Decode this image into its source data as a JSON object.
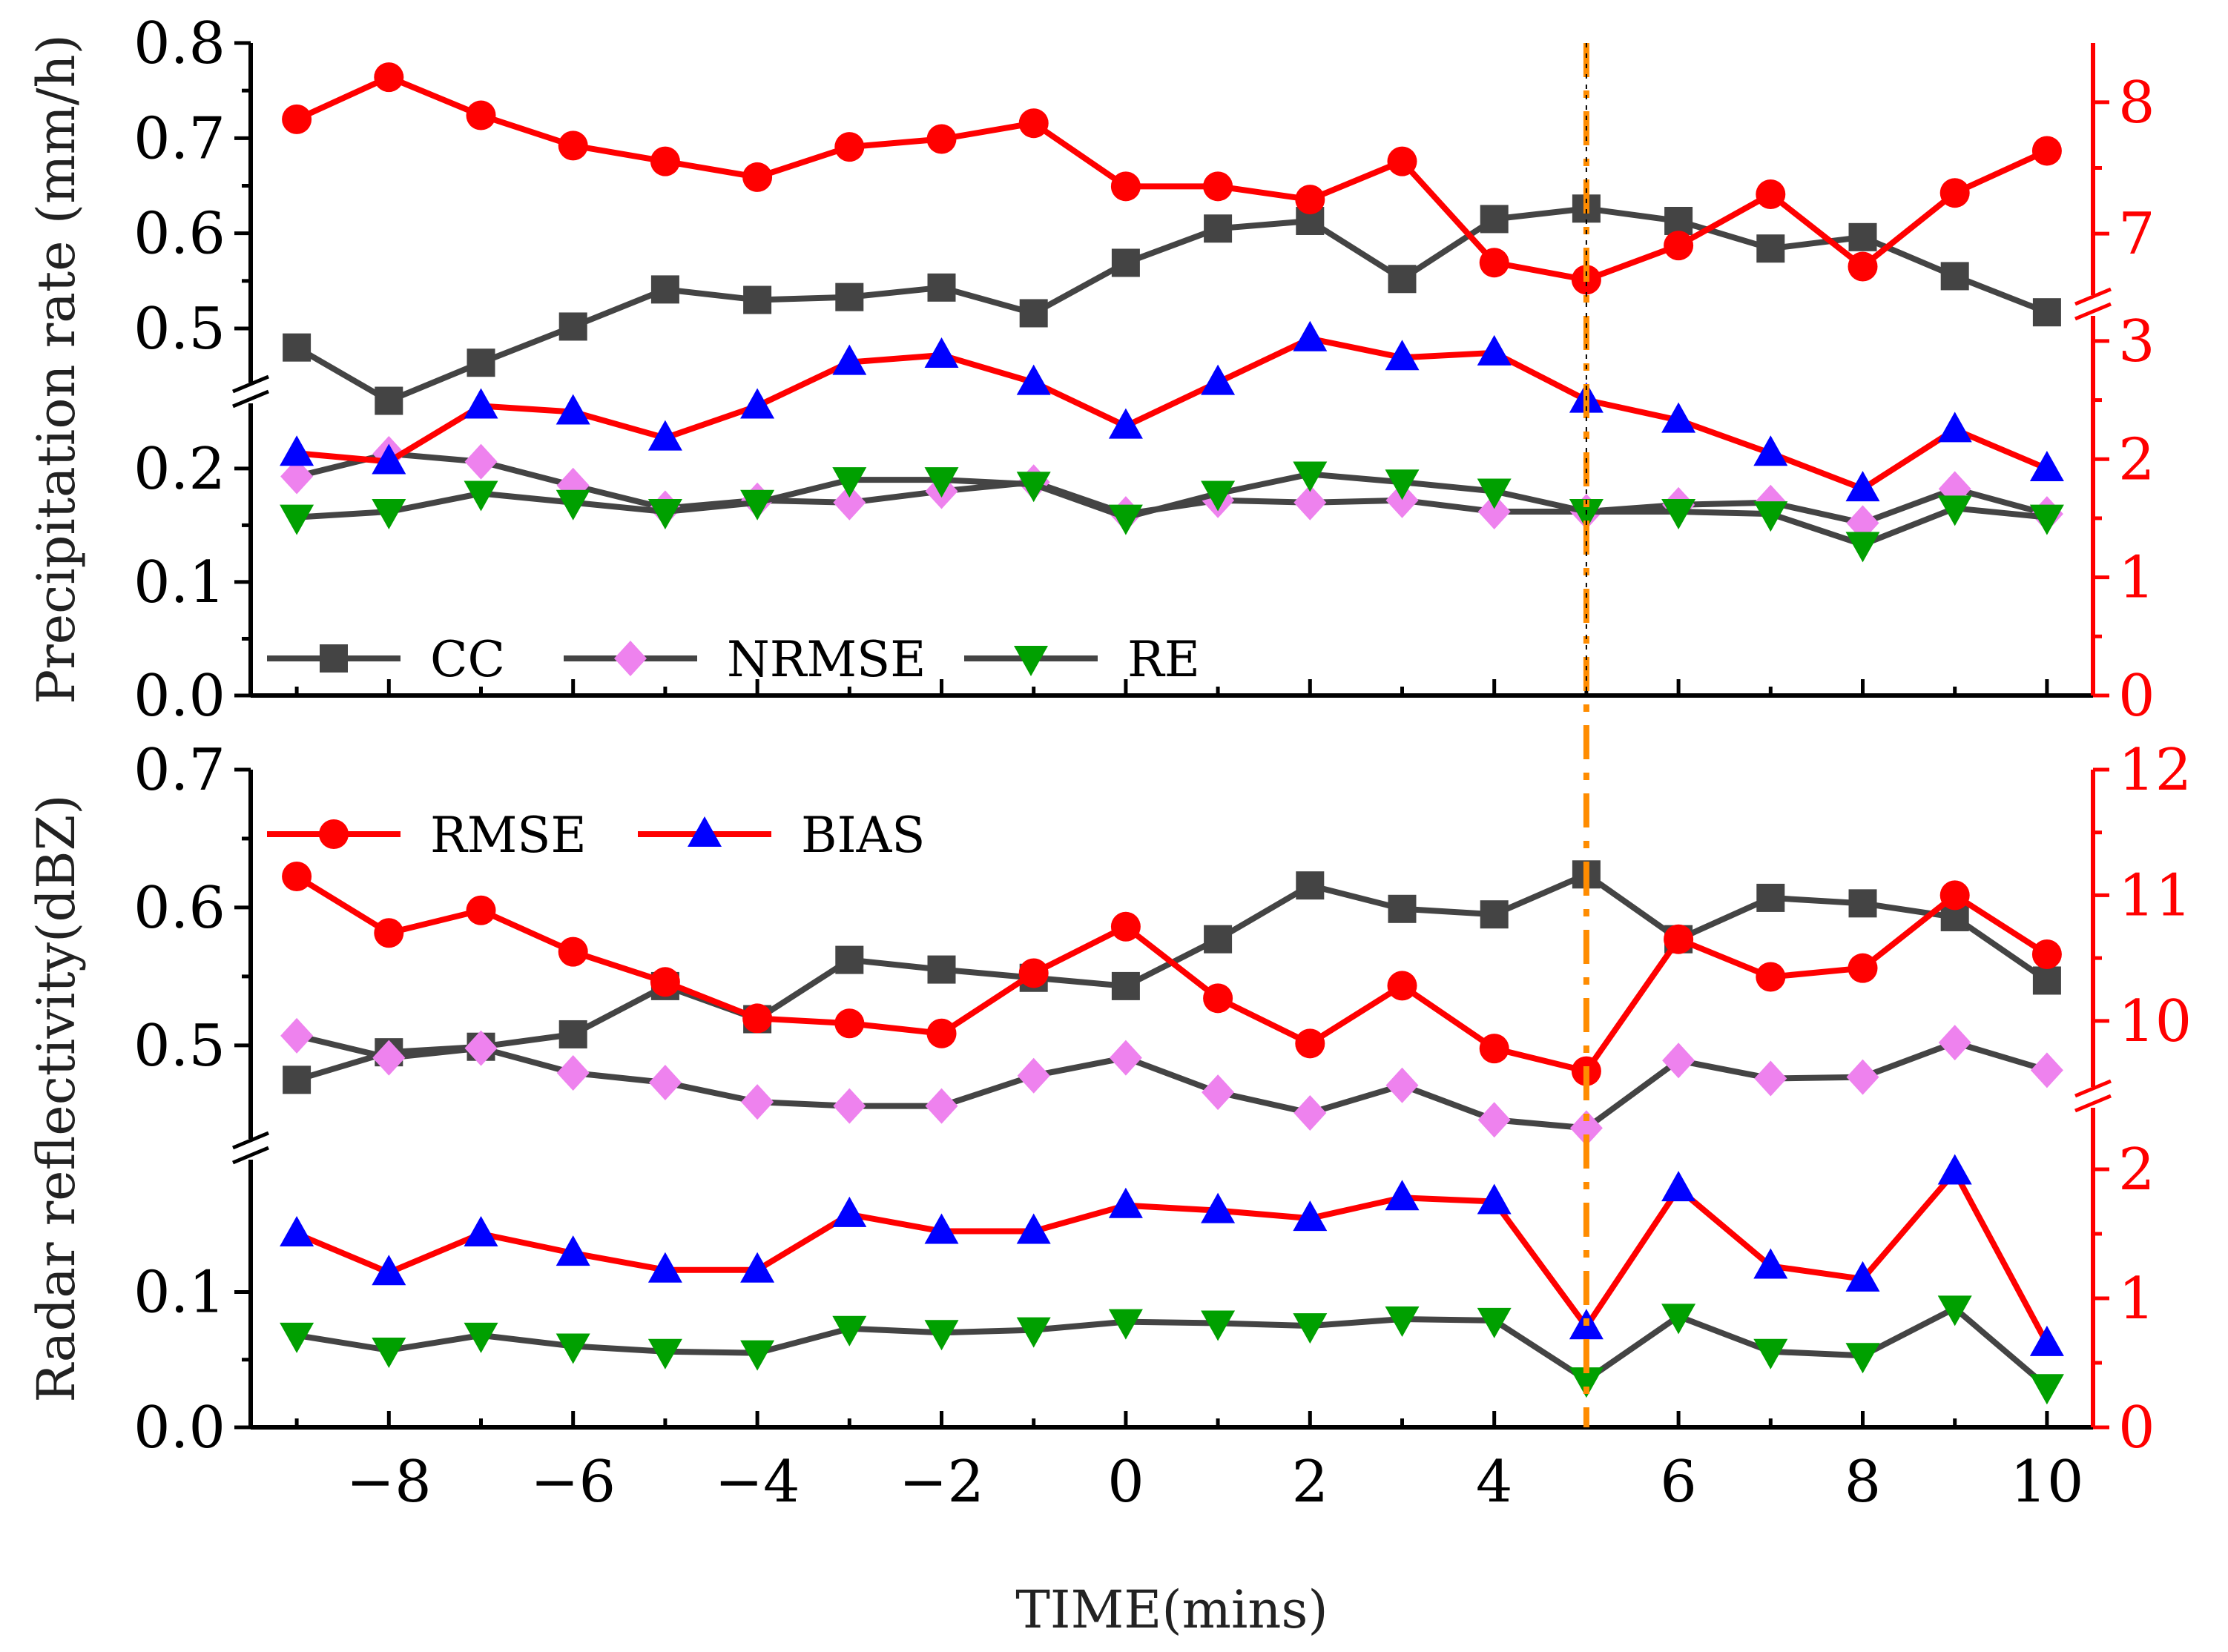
{
  "chart_data": {
    "type": "line",
    "x": [
      -9,
      -8,
      -7,
      -6,
      -5,
      -4,
      -3,
      -2,
      -1,
      0,
      1,
      2,
      3,
      4,
      5,
      6,
      7,
      8,
      9,
      10
    ],
    "xlabel": "TIME(mins)",
    "xlim": [
      -9.5,
      10.5
    ],
    "xticks": [
      -8,
      -6,
      -4,
      -2,
      0,
      2,
      4,
      6,
      8,
      10
    ],
    "xtick_labels": [
      "−8",
      "−6",
      "−4",
      "−2",
      "0",
      "2",
      "4",
      "6",
      "8",
      "10"
    ],
    "marker_line": {
      "x": 5,
      "color": "#ff8c00"
    },
    "panels": [
      {
        "name": "top",
        "ylabel": "Precipitation rate (mm/h)",
        "left_axis": {
          "lower": {
            "range": [
              0,
              0.26
            ],
            "ticks": [
              0.0,
              0.1,
              0.2
            ],
            "labels": [
              "0.0",
              "0.1",
              "0.2"
            ]
          },
          "upper": {
            "range": [
              0.44,
              0.8
            ],
            "ticks": [
              0.5,
              0.6,
              0.7,
              0.8
            ],
            "labels": [
              "0.5",
              "0.6",
              "0.7",
              "0.8"
            ]
          }
        },
        "right_axis": {
          "lower": {
            "range": [
              0,
              3.2
            ],
            "ticks": [
              0,
              1,
              2,
              3
            ],
            "labels": [
              "0",
              "1",
              "2",
              "3"
            ]
          },
          "upper": {
            "range": [
              6.55,
              8.45
            ],
            "ticks": [
              7,
              8
            ],
            "labels": [
              "7",
              "8"
            ]
          }
        },
        "series": [
          {
            "name": "CC",
            "axis": "left",
            "marker": "square",
            "color": "#444444",
            "values": [
              0.48,
              0.424,
              0.464,
              0.502,
              0.541,
              0.53,
              0.533,
              0.543,
              0.516,
              0.569,
              0.605,
              0.613,
              0.552,
              0.615,
              0.626,
              0.613,
              0.584,
              0.596,
              0.555,
              0.517
            ]
          },
          {
            "name": "NRMSE",
            "axis": "left",
            "marker": "diamond",
            "color": "#444444",
            "marker_color": "#ee82ee",
            "values": [
              0.193,
              0.213,
              0.206,
              0.185,
              0.165,
              0.172,
              0.17,
              0.18,
              0.188,
              0.16,
              0.172,
              0.17,
              0.172,
              0.162,
              0.162,
              0.168,
              0.17,
              0.152,
              0.182,
              0.16
            ]
          },
          {
            "name": "RE",
            "axis": "left",
            "marker": "triangle-down",
            "color": "#444444",
            "marker_color": "#00a000",
            "values": [
              0.157,
              0.162,
              0.178,
              0.17,
              0.162,
              0.17,
              0.19,
              0.19,
              0.186,
              0.157,
              0.178,
              0.195,
              0.188,
              0.18,
              0.162,
              0.162,
              0.16,
              0.133,
              0.165,
              0.157
            ]
          },
          {
            "name": "RMSE",
            "axis": "right",
            "marker": "circle",
            "color": "#ff0000",
            "values": [
              7.87,
              8.19,
              7.9,
              7.67,
              7.55,
              7.43,
              7.66,
              7.72,
              7.84,
              7.36,
              7.36,
              7.26,
              7.55,
              6.78,
              6.65,
              6.91,
              7.3,
              6.75,
              7.31,
              7.63
            ]
          },
          {
            "name": "BIAS",
            "axis": "right",
            "marker": "triangle-up",
            "color": "#ff0000",
            "marker_color": "#0000ff",
            "values": [
              2.05,
              1.98,
              2.45,
              2.4,
              2.18,
              2.45,
              2.82,
              2.88,
              2.65,
              2.28,
              2.65,
              3.02,
              2.86,
              2.9,
              2.5,
              2.33,
              2.05,
              1.75,
              2.25,
              1.92
            ]
          }
        ],
        "legend": [
          {
            "label": "CC",
            "marker": "square"
          },
          {
            "label": "NRMSE",
            "marker": "diamond"
          },
          {
            "label": "RE",
            "marker": "triangle-down"
          }
        ]
      },
      {
        "name": "bottom",
        "ylabel": "Radar reflectivity(dBZ)",
        "left_axis": {
          "lower": {
            "range": [
              0,
              0.2
            ],
            "ticks": [
              0.0,
              0.1
            ],
            "labels": [
              "0.0",
              "0.1"
            ]
          },
          "upper": {
            "range": [
              0.43,
              0.7
            ],
            "ticks": [
              0.5,
              0.6,
              0.7
            ],
            "labels": [
              "0.5",
              "0.6",
              "0.7"
            ]
          }
        },
        "right_axis": {
          "lower": {
            "range": [
              0,
              2.5
            ],
            "ticks": [
              0,
              1,
              2
            ],
            "labels": [
              "0",
              "1",
              "2"
            ]
          },
          "upper": {
            "range": [
              9.45,
              12
            ],
            "ticks": [
              10,
              11,
              12
            ],
            "labels": [
              "10",
              "11",
              "12"
            ]
          }
        },
        "series": [
          {
            "name": "CC",
            "axis": "left",
            "marker": "square",
            "color": "#444444",
            "values": [
              0.475,
              0.495,
              0.499,
              0.508,
              0.543,
              0.519,
              0.562,
              0.555,
              0.549,
              0.543,
              0.577,
              0.616,
              0.599,
              0.595,
              0.624,
              0.577,
              0.607,
              0.603,
              0.593,
              0.547
            ]
          },
          {
            "name": "NRMSE",
            "axis": "left",
            "marker": "diamond",
            "color": "#444444",
            "marker_color": "#ee82ee",
            "values": [
              0.507,
              0.491,
              0.498,
              0.48,
              0.473,
              0.459,
              0.456,
              0.456,
              0.478,
              0.491,
              0.466,
              0.451,
              0.471,
              0.446,
              0.44,
              0.489,
              0.476,
              0.477,
              0.502,
              0.482
            ]
          },
          {
            "name": "RE",
            "axis": "left",
            "marker": "triangle-down",
            "color": "#444444",
            "marker_color": "#00a000",
            "values": [
              0.068,
              0.057,
              0.068,
              0.06,
              0.056,
              0.055,
              0.073,
              0.07,
              0.072,
              0.078,
              0.077,
              0.075,
              0.08,
              0.079,
              0.035,
              0.082,
              0.056,
              0.053,
              0.088,
              0.03
            ]
          },
          {
            "name": "RMSE",
            "axis": "right",
            "marker": "circle",
            "color": "#ff0000",
            "values": [
              11.15,
              10.7,
              10.88,
              10.55,
              10.31,
              10.02,
              9.98,
              9.9,
              10.38,
              10.75,
              10.18,
              9.82,
              10.28,
              9.78,
              9.6,
              10.65,
              10.35,
              10.42,
              11.0,
              10.53
            ]
          },
          {
            "name": "BIAS",
            "axis": "right",
            "marker": "triangle-up",
            "color": "#ff0000",
            "marker_color": "#0000ff",
            "values": [
              1.5,
              1.2,
              1.5,
              1.35,
              1.22,
              1.22,
              1.65,
              1.52,
              1.52,
              1.72,
              1.68,
              1.62,
              1.78,
              1.75,
              0.78,
              1.85,
              1.25,
              1.15,
              1.98,
              0.65
            ]
          }
        ],
        "legend": [
          {
            "label": "RMSE",
            "marker": "circle"
          },
          {
            "label": "BIAS",
            "marker": "triangle-up"
          }
        ]
      }
    ]
  }
}
